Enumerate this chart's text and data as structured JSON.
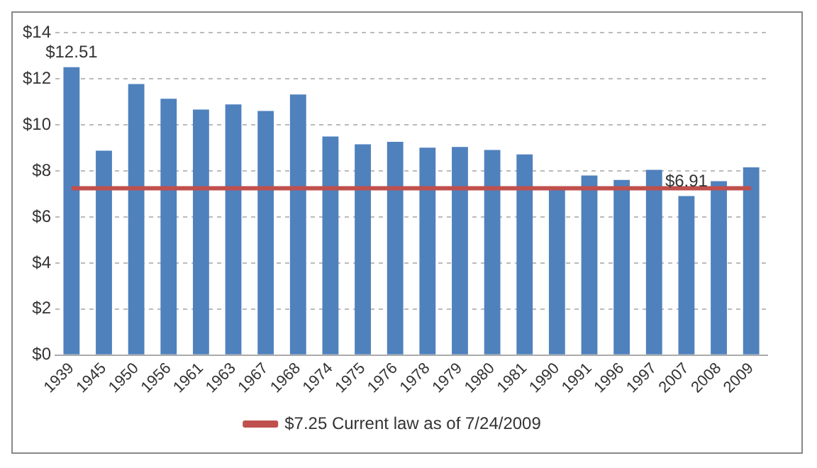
{
  "chart_data": {
    "type": "bar",
    "categories": [
      "1939",
      "1945",
      "1950",
      "1956",
      "1961",
      "1963",
      "1967",
      "1968",
      "1974",
      "1975",
      "1976",
      "1978",
      "1979",
      "1980",
      "1981",
      "1990",
      "1991",
      "1996",
      "1997",
      "2007",
      "2008",
      "2009"
    ],
    "series": [
      {
        "color": "#4f81bd",
        "values": [
          12.51,
          8.88,
          11.78,
          11.14,
          10.67,
          10.89,
          10.61,
          11.32,
          9.5,
          9.16,
          9.27,
          9.01,
          9.04,
          8.91,
          8.72,
          7.2,
          7.8,
          7.61,
          8.05,
          6.91,
          7.56,
          8.16
        ],
        "value_labels": [
          "$12.51",
          null,
          null,
          null,
          null,
          null,
          null,
          null,
          null,
          null,
          null,
          null,
          null,
          null,
          null,
          null,
          null,
          null,
          null,
          "$6.91",
          null,
          null
        ]
      },
      {
        "type": "line",
        "name": "$7.25 Current law as of 7/24/2009",
        "color": "#c0504d",
        "values": [
          7.25,
          7.25,
          7.25,
          7.25,
          7.25,
          7.25,
          7.25,
          7.25,
          7.25,
          7.25,
          7.25,
          7.25,
          7.25,
          7.25,
          7.25,
          7.25,
          7.25,
          7.25,
          7.25,
          7.25,
          7.25,
          7.25
        ]
      }
    ],
    "ylim": [
      0,
      14
    ],
    "yticks": [
      {
        "value": 0,
        "label": "$0"
      },
      {
        "value": 2,
        "label": "$2"
      },
      {
        "value": 4,
        "label": "$4"
      },
      {
        "value": 6,
        "label": "$6"
      },
      {
        "value": 8,
        "label": "$8"
      },
      {
        "value": 10,
        "label": "$10"
      },
      {
        "value": 12,
        "label": "$12"
      },
      {
        "value": 14,
        "label": "$14"
      }
    ],
    "grid": "y",
    "legend": "bottom",
    "marker": "none",
    "line_style": "solid"
  }
}
